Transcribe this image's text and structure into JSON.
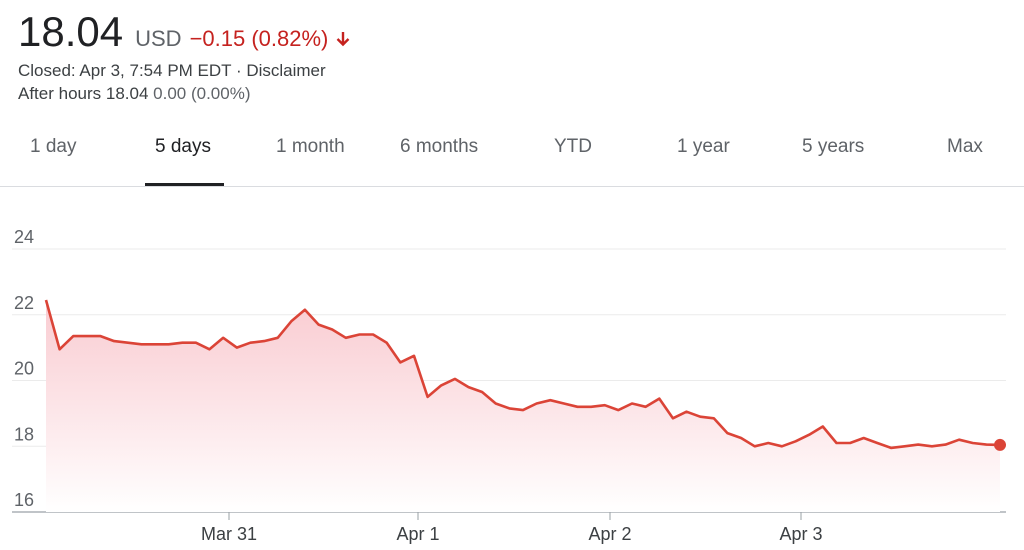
{
  "quote": {
    "price": "18.04",
    "currency": "USD",
    "change": "−0.15 (0.82%)",
    "closed_line": "Closed: Apr 3, 7:54 PM EDT · Disclaimer",
    "after_hours_label": "After hours 18.04",
    "after_hours_change": "0.00 (0.00%)"
  },
  "tabs": [
    {
      "label": "1 day"
    },
    {
      "label": "5 days",
      "active": true
    },
    {
      "label": "1 month"
    },
    {
      "label": "6 months"
    },
    {
      "label": "YTD"
    },
    {
      "label": "1 year"
    },
    {
      "label": "5 years"
    },
    {
      "label": "Max"
    }
  ],
  "icons": {
    "change_arrow": "arrow-down-icon"
  },
  "colors": {
    "line": "#db4437",
    "negative": "#c5221f",
    "fill": "#fce8e6"
  },
  "chart_data": {
    "type": "area",
    "x_tick_labels": [
      "Mar 31",
      "Apr 1",
      "Apr 2",
      "Apr 3"
    ],
    "ylim": [
      16,
      24
    ],
    "yticks": [
      16,
      18,
      20,
      22,
      24
    ],
    "grid": true,
    "series": [
      {
        "values": [
          22.45,
          20.95,
          21.35,
          21.35,
          21.35,
          21.2,
          21.15,
          21.1,
          21.1,
          21.1,
          21.15,
          21.15,
          20.95,
          21.3,
          21.0,
          21.15,
          21.2,
          21.3,
          21.8,
          22.15,
          21.7,
          21.55,
          21.3,
          21.4,
          21.4,
          21.15,
          20.55,
          20.75,
          19.5,
          19.85,
          20.05,
          19.8,
          19.65,
          19.3,
          19.15,
          19.1,
          19.3,
          19.4,
          19.3,
          19.2,
          19.2,
          19.25,
          19.1,
          19.3,
          19.2,
          19.45,
          18.85,
          19.05,
          18.9,
          18.85,
          18.4,
          18.25,
          18.0,
          18.1,
          18.0,
          18.15,
          18.35,
          18.6,
          18.1,
          18.1,
          18.25,
          18.1,
          17.95,
          18.0,
          18.05,
          18.0,
          18.05,
          18.2,
          18.1,
          18.05,
          18.04
        ]
      }
    ]
  }
}
